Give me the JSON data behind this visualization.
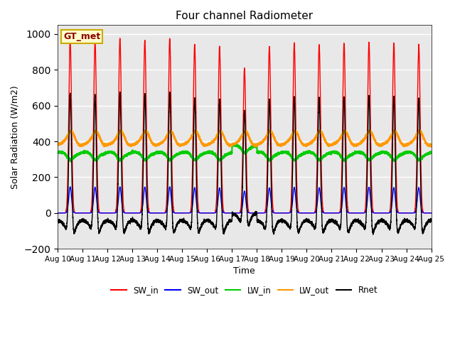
{
  "title": "Four channel Radiometer",
  "xlabel": "Time",
  "ylabel": "Solar Radiation (W/m2)",
  "ylim": [
    -200,
    1050
  ],
  "background_color": "#e8e8e8",
  "station_label": "GT_met",
  "x_tick_labels": [
    "Aug 10",
    "Aug 11",
    "Aug 12",
    "Aug 13",
    "Aug 14",
    "Aug 15",
    "Aug 16",
    "Aug 17",
    "Aug 18",
    "Aug 19",
    "Aug 20",
    "Aug 21",
    "Aug 22",
    "Aug 23",
    "Aug 24",
    "Aug 25"
  ],
  "colors": {
    "SW_in": "#ff0000",
    "SW_out": "#0000ff",
    "LW_in": "#00cc00",
    "LW_out": "#ff9900",
    "Rnet": "#000000"
  },
  "lw": {
    "SW_in": 1.0,
    "SW_out": 1.0,
    "LW_in": 1.5,
    "LW_out": 1.5,
    "Rnet": 1.0
  }
}
